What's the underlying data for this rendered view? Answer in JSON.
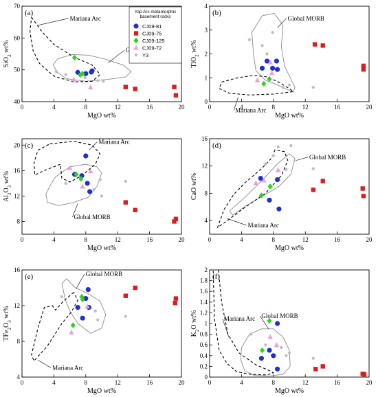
{
  "colors": {
    "CJ09-81": "#1f2fd0",
    "CJ09-75": "#e01b1b",
    "CJ09-125": "#2fd21e",
    "CJ09-72": "#e7a3d4",
    "Y3": "#bfbfbf",
    "axis": "#000000",
    "morb_outline": "#8a8a8a",
    "arc_outline": "#000000"
  },
  "legend": {
    "title": "Yap Arc metamorphic basement rocks",
    "items": [
      {
        "name": "CJ09-81",
        "marker": "circle"
      },
      {
        "name": "CJ09-75",
        "marker": "square"
      },
      {
        "name": "CJ09-125",
        "marker": "diamond"
      },
      {
        "name": "CJ09-72",
        "marker": "triangle"
      },
      {
        "name": "Y3",
        "marker": "hexagon"
      }
    ]
  },
  "chart_data": [
    {
      "type": "scatter",
      "panel_label": "(a)",
      "xlabel": "MgO wt%",
      "ylabel": "SiO2 wt%",
      "xlim": [
        0,
        20
      ],
      "ylim": [
        40,
        70
      ],
      "xticks": [
        0,
        4,
        8,
        12,
        16,
        20
      ],
      "yticks": [
        40,
        50,
        60,
        70
      ],
      "region_labels": [
        "Mariana Arc",
        "Global MORB"
      ],
      "series": [
        {
          "name": "CJ09-81",
          "points": [
            [
              7.0,
              49.2
            ],
            [
              8.0,
              48.8
            ],
            [
              8.7,
              49.3
            ],
            [
              8.8,
              49.7
            ]
          ]
        },
        {
          "name": "CJ09-75",
          "points": [
            [
              13.0,
              44.6
            ],
            [
              14.2,
              44.0
            ],
            [
              19.1,
              44.6
            ],
            [
              19.3,
              42.0
            ]
          ]
        },
        {
          "name": "CJ09-125",
          "points": [
            [
              6.6,
              53.8
            ],
            [
              7.3,
              48.4
            ],
            [
              7.6,
              48.8
            ]
          ]
        },
        {
          "name": "CJ09-72",
          "points": [
            [
              6.5,
              47.0
            ],
            [
              8.6,
              44.5
            ]
          ]
        },
        {
          "name": "Y3",
          "points": [
            [
              4.3,
              49.5
            ],
            [
              5.5,
              48.5
            ],
            [
              9.5,
              46.6
            ],
            [
              10.2,
              46.4
            ],
            [
              7.9,
              47.6
            ]
          ]
        }
      ]
    },
    {
      "type": "scatter",
      "panel_label": "(b)",
      "xlabel": "MgO wt%",
      "ylabel": "TiO2 wt%",
      "xlim": [
        0,
        20
      ],
      "ylim": [
        0,
        4
      ],
      "xticks": [
        0,
        4,
        8,
        12,
        16,
        20
      ],
      "yticks": [
        0,
        1,
        2,
        3,
        4
      ],
      "region_labels": [
        "Global MORB",
        "Mariana Arc"
      ],
      "series": [
        {
          "name": "CJ09-81",
          "points": [
            [
              6.6,
              1.4
            ],
            [
              7.2,
              1.7
            ],
            [
              7.9,
              1.4
            ],
            [
              8.4,
              1.7
            ],
            [
              8.5,
              1.35
            ]
          ]
        },
        {
          "name": "CJ09-75",
          "points": [
            [
              13.2,
              2.4
            ],
            [
              14.2,
              2.35
            ],
            [
              19.3,
              1.5
            ],
            [
              19.3,
              1.35
            ]
          ]
        },
        {
          "name": "CJ09-125",
          "points": [
            [
              6.8,
              0.75
            ],
            [
              7.5,
              0.95
            ]
          ]
        },
        {
          "name": "CJ09-72",
          "points": [
            [
              6.0,
              0.9
            ],
            [
              7.6,
              1.65
            ],
            [
              7.8,
              1.2
            ]
          ]
        },
        {
          "name": "Y3",
          "points": [
            [
              5.0,
              2.6
            ],
            [
              6.6,
              2.35
            ],
            [
              7.2,
              2.0
            ],
            [
              7.9,
              2.9
            ],
            [
              9.2,
              0.6
            ],
            [
              10.0,
              0.7
            ],
            [
              13.0,
              0.6
            ]
          ]
        }
      ]
    },
    {
      "type": "scatter",
      "panel_label": "(c)",
      "xlabel": "MgO wt%",
      "ylabel": "Al2O3 wt%",
      "xlim": [
        0,
        20
      ],
      "ylim": [
        6,
        21
      ],
      "xticks": [
        0,
        4,
        8,
        12,
        16,
        20
      ],
      "yticks": [
        8,
        12,
        16,
        20
      ],
      "region_labels": [
        "Mariana Arc",
        "Global MORB"
      ],
      "series": [
        {
          "name": "CJ09-81",
          "points": [
            [
              6.6,
              15.4
            ],
            [
              7.5,
              15.2
            ],
            [
              8.0,
              18.3
            ],
            [
              8.2,
              14.0
            ],
            [
              8.5,
              12.7
            ]
          ]
        },
        {
          "name": "CJ09-75",
          "points": [
            [
              13.0,
              11.0
            ],
            [
              14.2,
              9.8
            ],
            [
              19.1,
              8.0
            ],
            [
              19.3,
              8.4
            ]
          ]
        },
        {
          "name": "CJ09-125",
          "points": [
            [
              6.8,
              15.4
            ],
            [
              7.4,
              14.7
            ]
          ]
        },
        {
          "name": "CJ09-72",
          "points": [
            [
              6.0,
              16.4
            ],
            [
              7.6,
              13.5
            ],
            [
              8.6,
              15.9
            ]
          ]
        },
        {
          "name": "Y3",
          "points": [
            [
              5.5,
              14.0
            ],
            [
              9.0,
              13.0
            ],
            [
              9.8,
              14.6
            ],
            [
              10.0,
              12.0
            ],
            [
              13.0,
              14.3
            ]
          ]
        }
      ]
    },
    {
      "type": "scatter",
      "panel_label": "(d)",
      "xlabel": "MgO wt%",
      "ylabel": "CaO wt%",
      "xlim": [
        0,
        20
      ],
      "ylim": [
        2,
        16
      ],
      "xticks": [
        0,
        4,
        8,
        12,
        16,
        20
      ],
      "yticks": [
        4,
        8,
        12,
        16
      ],
      "region_labels": [
        "Global MORB",
        "Mariana Arc"
      ],
      "series": [
        {
          "name": "CJ09-81",
          "points": [
            [
              6.4,
              10.2
            ],
            [
              7.5,
              7.0
            ],
            [
              8.5,
              10.0
            ],
            [
              8.7,
              5.7
            ]
          ]
        },
        {
          "name": "CJ09-75",
          "points": [
            [
              13.0,
              8.5
            ],
            [
              14.2,
              9.8
            ],
            [
              19.2,
              8.7
            ],
            [
              19.3,
              7.6
            ]
          ]
        },
        {
          "name": "CJ09-125",
          "points": [
            [
              6.5,
              7.7
            ],
            [
              7.6,
              9.0
            ]
          ]
        },
        {
          "name": "CJ09-72",
          "points": [
            [
              5.8,
              9.5
            ],
            [
              6.8,
              9.9
            ],
            [
              8.6,
              11.4
            ]
          ]
        },
        {
          "name": "Y3",
          "points": [
            [
              7.0,
              12.3
            ],
            [
              8.0,
              13.5
            ],
            [
              8.6,
              14.8
            ],
            [
              9.6,
              11.5
            ],
            [
              10.2,
              15.0
            ],
            [
              13.0,
              11.6
            ]
          ]
        }
      ]
    },
    {
      "type": "scatter",
      "panel_label": "(e)",
      "xlabel": "MgO wt%",
      "ylabel": "TFe2O3 wt%",
      "xlim": [
        0,
        20
      ],
      "ylim": [
        4,
        16
      ],
      "xticks": [
        0,
        4,
        8,
        12,
        16,
        20
      ],
      "yticks": [
        4,
        8,
        12,
        16
      ],
      "region_labels": [
        "Global MORB",
        "Mariana Arc"
      ],
      "series": [
        {
          "name": "CJ09-81",
          "points": [
            [
              7.0,
              11.8
            ],
            [
              7.6,
              10.6
            ],
            [
              8.0,
              12.8
            ],
            [
              8.3,
              13.8
            ],
            [
              8.4,
              11.8
            ]
          ]
        },
        {
          "name": "CJ09-75",
          "points": [
            [
              13.0,
              13.1
            ],
            [
              14.2,
              14.0
            ],
            [
              19.2,
              12.3
            ],
            [
              19.3,
              12.8
            ]
          ]
        },
        {
          "name": "CJ09-125",
          "points": [
            [
              6.4,
              9.8
            ],
            [
              7.5,
              13.0
            ],
            [
              7.6,
              12.7
            ]
          ]
        },
        {
          "name": "CJ09-72",
          "points": [
            [
              6.2,
              9.0
            ],
            [
              8.2,
              11.9
            ]
          ]
        },
        {
          "name": "Y3",
          "points": [
            [
              5.0,
              13.0
            ],
            [
              9.2,
              11.4
            ],
            [
              9.5,
              10.4
            ],
            [
              13.0,
              10.8
            ]
          ]
        }
      ]
    },
    {
      "type": "scatter",
      "panel_label": "(f)",
      "xlabel": "MgO wt%",
      "ylabel": "K2O wt%",
      "xlim": [
        0,
        20
      ],
      "ylim": [
        0,
        2
      ],
      "xticks": [
        0,
        4,
        8,
        12,
        16,
        20
      ],
      "yticks": [
        0,
        0.2,
        0.4,
        0.6,
        0.8,
        1.0,
        1.2,
        1.4,
        1.6,
        1.8,
        2
      ],
      "region_labels": [
        "Mariana Arc",
        "Global MORB"
      ],
      "series": [
        {
          "name": "CJ09-81",
          "points": [
            [
              6.5,
              0.35
            ],
            [
              7.5,
              0.5
            ],
            [
              8.0,
              0.4
            ],
            [
              8.5,
              1.0
            ],
            [
              8.5,
              0.15
            ]
          ]
        },
        {
          "name": "CJ09-75",
          "points": [
            [
              13.3,
              0.15
            ],
            [
              14.2,
              0.2
            ],
            [
              19.2,
              0.06
            ],
            [
              19.4,
              0.05
            ]
          ]
        },
        {
          "name": "CJ09-125",
          "points": [
            [
              6.6,
              0.5
            ],
            [
              7.5,
              1.05
            ]
          ]
        },
        {
          "name": "CJ09-72",
          "points": [
            [
              7.6,
              0.75
            ],
            [
              8.4,
              0.6
            ]
          ]
        },
        {
          "name": "Y3",
          "points": [
            [
              5.2,
              0.8
            ],
            [
              7.0,
              0.6
            ],
            [
              9.0,
              0.55
            ],
            [
              9.6,
              0.4
            ],
            [
              10.0,
              0.45
            ],
            [
              13.0,
              0.35
            ]
          ]
        }
      ]
    }
  ]
}
